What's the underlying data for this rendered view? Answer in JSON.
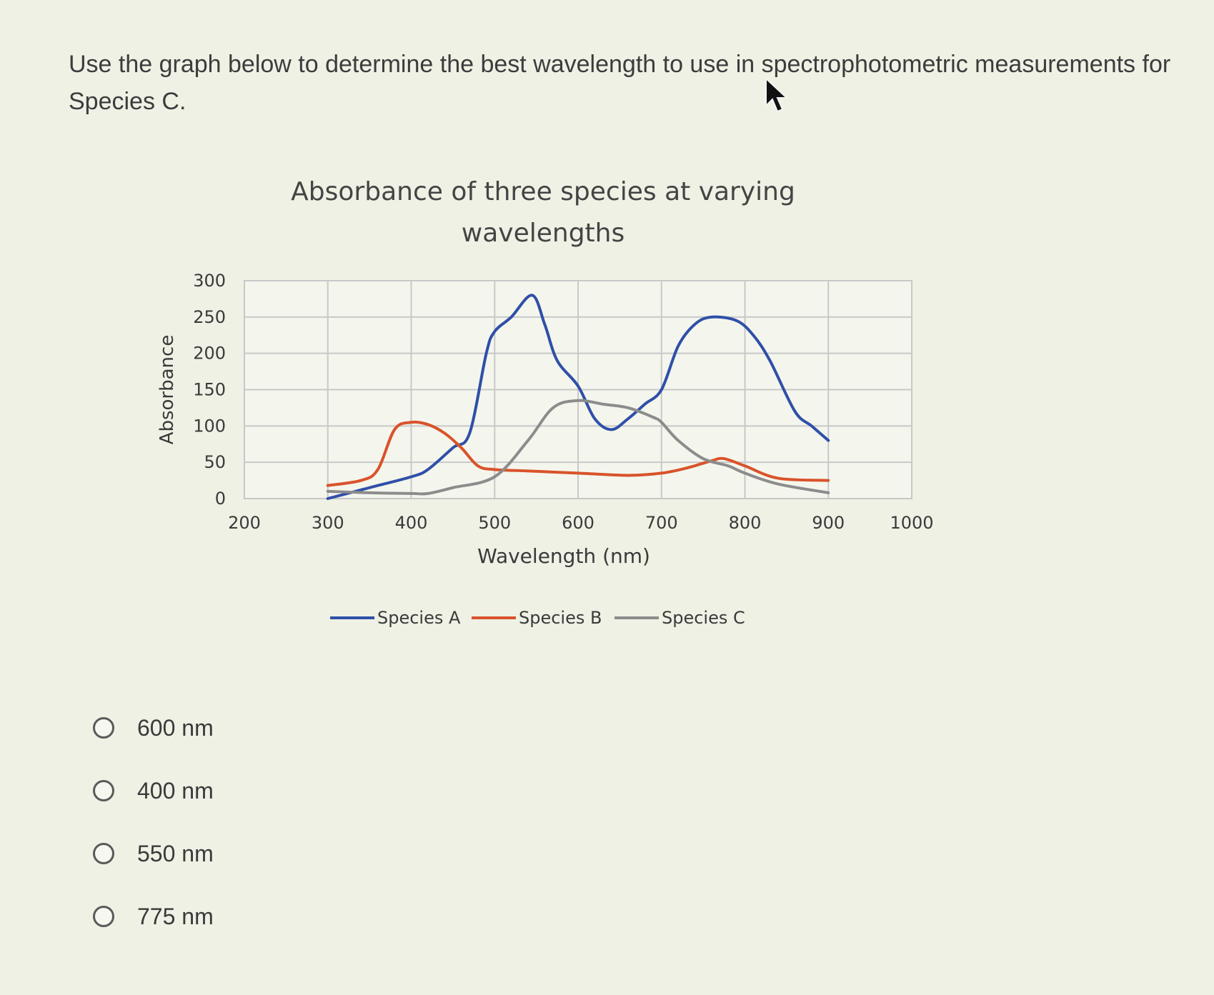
{
  "question": {
    "text": "Use the graph below to determine the best wavelength to use in spectrophotometric measurements for Species C."
  },
  "options": [
    {
      "label": "600 nm"
    },
    {
      "label": "400 nm"
    },
    {
      "label": "550 nm"
    },
    {
      "label": "775 nm"
    }
  ],
  "chart_data": {
    "type": "line",
    "title_line1": "Absorbance of three species at varying",
    "title_line2": "wavelengths",
    "xlabel": "Wavelength (nm)",
    "ylabel": "Absorbance",
    "xlim": [
      200,
      1000
    ],
    "ylim": [
      0,
      300
    ],
    "xticks": [
      200,
      300,
      400,
      500,
      600,
      700,
      800,
      900,
      1000
    ],
    "yticks": [
      0,
      50,
      100,
      150,
      200,
      250,
      300
    ],
    "grid": true,
    "legend": "bottom",
    "series": [
      {
        "name": "Species A",
        "color": "#2f4fa8",
        "x": [
          300,
          350,
          400,
          420,
          450,
          470,
          490,
          500,
          520,
          545,
          560,
          575,
          600,
          620,
          640,
          660,
          680,
          700,
          720,
          740,
          760,
          790,
          810,
          830,
          860,
          880,
          900
        ],
        "y": [
          0,
          15,
          30,
          40,
          70,
          90,
          200,
          230,
          250,
          280,
          240,
          190,
          155,
          110,
          95,
          110,
          130,
          150,
          210,
          240,
          250,
          245,
          225,
          190,
          120,
          100,
          80
        ]
      },
      {
        "name": "Species B",
        "color": "#d9532b",
        "x": [
          300,
          340,
          360,
          380,
          400,
          420,
          440,
          460,
          480,
          500,
          540,
          600,
          660,
          700,
          730,
          760,
          775,
          800,
          840,
          900
        ],
        "y": [
          18,
          25,
          40,
          95,
          105,
          102,
          90,
          70,
          45,
          40,
          38,
          35,
          32,
          35,
          42,
          52,
          55,
          45,
          28,
          25
        ]
      },
      {
        "name": "Species C",
        "color": "#8c8c8c",
        "x": [
          300,
          350,
          400,
          420,
          450,
          500,
          540,
          570,
          600,
          630,
          660,
          690,
          700,
          720,
          750,
          780,
          800,
          840,
          900
        ],
        "y": [
          10,
          8,
          7,
          7,
          15,
          30,
          80,
          125,
          135,
          130,
          125,
          112,
          105,
          80,
          55,
          45,
          35,
          20,
          8
        ]
      }
    ]
  },
  "colors": {
    "background": "#eef1e4",
    "grid": "#c8c8c8",
    "text": "#3a3a3a"
  }
}
